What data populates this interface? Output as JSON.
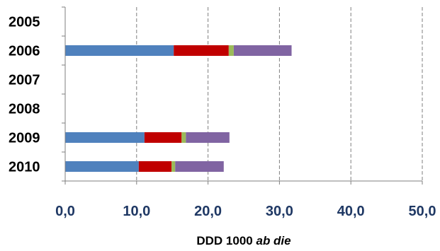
{
  "chart_data": {
    "type": "bar",
    "orientation": "horizontal",
    "stacked": true,
    "categories": [
      "2005",
      "2006",
      "2007",
      "2008",
      "2009",
      "2010"
    ],
    "series": [
      {
        "color": "#4f81bd",
        "values": [
          0,
          15.2,
          0,
          0,
          11.1,
          10.3
        ]
      },
      {
        "color": "#c00000",
        "values": [
          0,
          7.7,
          0,
          0,
          5.2,
          4.6
        ]
      },
      {
        "color": "#9bbb59",
        "values": [
          0,
          0.7,
          0,
          0,
          0.6,
          0.5
        ]
      },
      {
        "color": "#8064a2",
        "values": [
          0,
          8.1,
          0,
          0,
          6.1,
          6.8
        ]
      }
    ],
    "x_ticks": [
      "0,0",
      "10,0",
      "20,0",
      "30,0",
      "40,0",
      "50,0"
    ],
    "xlim": [
      0,
      50
    ],
    "xlabel_main": "DDD 1000",
    "xlabel_italic": "ab die",
    "grid": "vertical dashed",
    "legend": "none",
    "colors": {
      "tick_label": "#1f3864",
      "grid": "#7f7f7f",
      "axis": "#7f7f7f"
    }
  }
}
